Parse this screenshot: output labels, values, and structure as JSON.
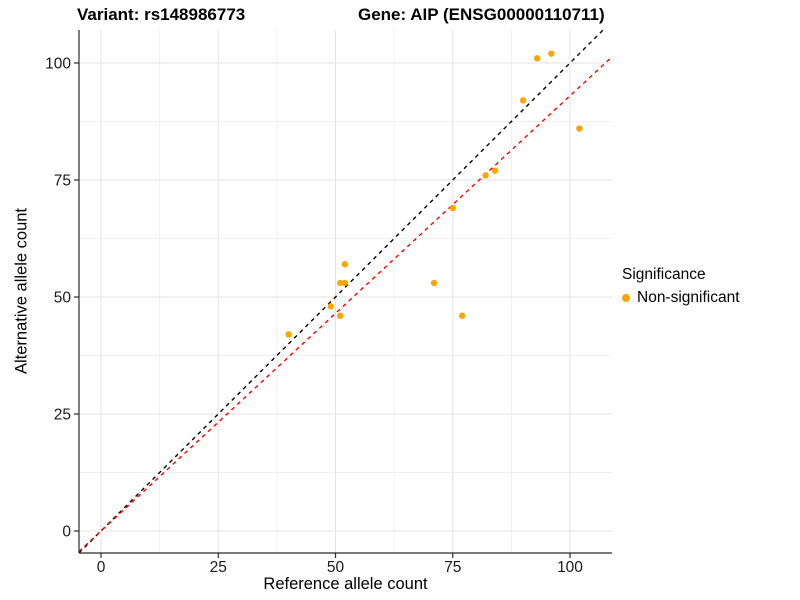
{
  "chart_data": {
    "type": "scatter",
    "title_left": "Variant: rs148986773",
    "title_right": "Gene: AIP (ENSG00000110711)",
    "xlabel": "Reference allele count",
    "ylabel": "Alternative allele count",
    "x_ticks": [
      0,
      25,
      50,
      75,
      100
    ],
    "y_ticks": [
      0,
      25,
      50,
      75,
      100
    ],
    "x_minor_ticks": [
      12.5,
      37.5,
      62.5,
      87.5
    ],
    "y_minor_ticks": [
      12.5,
      37.5,
      62.5,
      87.5
    ],
    "xlim": [
      -4.7,
      109
    ],
    "ylim": [
      -4.7,
      107
    ],
    "grid": true,
    "legend_position": "right",
    "legend_title": "Significance",
    "series": [
      {
        "name": "Non-significant",
        "color": "#FFA500",
        "points": [
          [
            40,
            42
          ],
          [
            49,
            48
          ],
          [
            51,
            46
          ],
          [
            51,
            53
          ],
          [
            52,
            53
          ],
          [
            52,
            57
          ],
          [
            71,
            53
          ],
          [
            75,
            69
          ],
          [
            77,
            46
          ],
          [
            82,
            76
          ],
          [
            84,
            77
          ],
          [
            90,
            92
          ],
          [
            93,
            101
          ],
          [
            96,
            102
          ],
          [
            102,
            86
          ]
        ]
      }
    ],
    "reference_lines": [
      {
        "name": "identity",
        "slope": 1,
        "intercept": 0,
        "color": "#000000",
        "style": "dashed"
      },
      {
        "name": "regression",
        "slope": 0.93,
        "intercept": 0,
        "color": "#FF0000",
        "style": "dashed"
      }
    ]
  },
  "colors": {
    "point": "#FFA500",
    "identity_line": "#000000",
    "regression_line": "#FF0000",
    "grid_major": "#E3E3E3",
    "grid_minor": "#F0F0F0",
    "axis_line": "#2B2B2B",
    "tick_label": "#1A1A1A"
  }
}
